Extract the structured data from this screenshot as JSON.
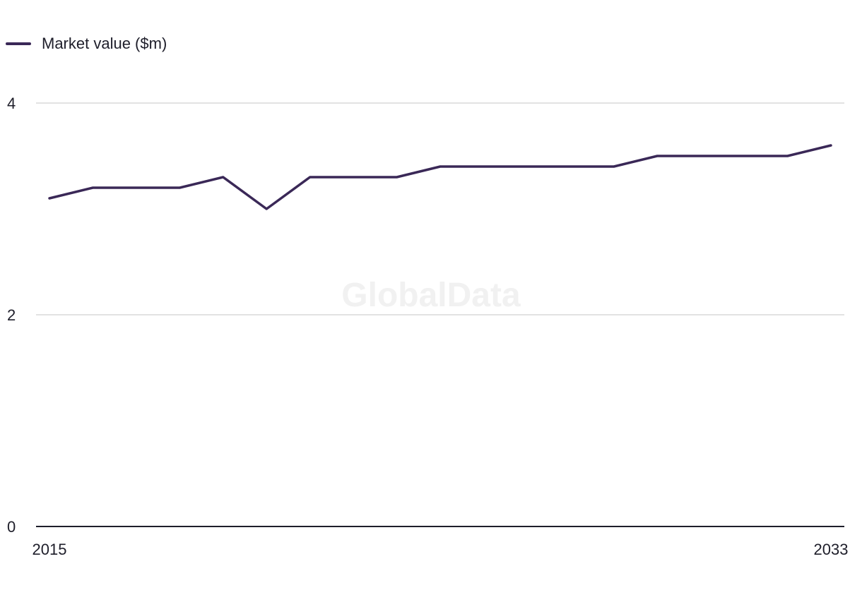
{
  "chart_data": {
    "type": "line",
    "title": "",
    "xlabel": "",
    "ylabel": "",
    "x": [
      2015,
      2016,
      2017,
      2018,
      2019,
      2020,
      2021,
      2022,
      2023,
      2024,
      2025,
      2026,
      2027,
      2028,
      2029,
      2030,
      2031,
      2032,
      2033
    ],
    "series": [
      {
        "name": "Market value ($m)",
        "color": "#3a2857",
        "values": [
          3.1,
          3.2,
          3.2,
          3.2,
          3.3,
          3.0,
          3.3,
          3.3,
          3.3,
          3.4,
          3.4,
          3.4,
          3.4,
          3.4,
          3.5,
          3.5,
          3.5,
          3.5,
          3.6
        ]
      }
    ],
    "ylim": [
      0,
      4
    ],
    "y_ticks": [
      "0",
      "2",
      "4"
    ],
    "x_tick_labels": [
      "2015",
      "2033"
    ],
    "grid": true,
    "legend_position": "top-left"
  },
  "watermark": "GlobalData"
}
